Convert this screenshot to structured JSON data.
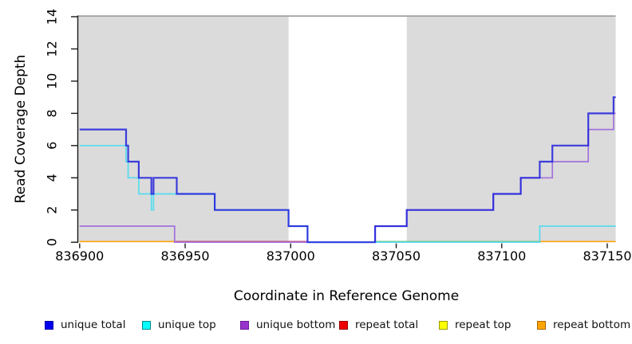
{
  "figure": {
    "background": "#ffffff"
  },
  "chart_data": {
    "type": "line",
    "subtype": "step-coverage-plot",
    "title": "",
    "xlabel": "Coordinate in Reference Genome",
    "ylabel": "Read Coverage Depth",
    "xlim": [
      836899,
      837154
    ],
    "ylim": [
      0,
      14
    ],
    "x_ticks": [
      836900,
      836950,
      837000,
      837050,
      837100,
      837150
    ],
    "y_ticks": [
      0,
      2,
      4,
      6,
      8,
      10,
      12,
      14
    ],
    "grid": false,
    "legend_position": "bottom",
    "shaded_regions": [
      {
        "x1": 836899,
        "x2": 836999,
        "color": "#dbdbdb"
      },
      {
        "x1": 837055,
        "x2": 837154,
        "color": "#dbdbdb"
      }
    ],
    "max_depth_cap_line": {
      "y": 14,
      "color": "#909090"
    },
    "series": [
      {
        "name": "unique total",
        "color": "#2222dd",
        "legend_fill": "#0000ee",
        "legend_border": "#0000aa",
        "steps": [
          [
            836900,
            7
          ],
          [
            836922,
            6
          ],
          [
            836923,
            5
          ],
          [
            836928,
            4
          ],
          [
            836934,
            3
          ],
          [
            836935,
            4
          ],
          [
            836946,
            3
          ],
          [
            836964,
            2
          ],
          [
            836999,
            1
          ],
          [
            837008,
            0
          ],
          [
            837040,
            1
          ],
          [
            837055,
            2
          ],
          [
            837096,
            3
          ],
          [
            837109,
            4
          ],
          [
            837118,
            5
          ],
          [
            837124,
            6
          ],
          [
            837141,
            8
          ],
          [
            837153,
            9
          ],
          [
            837154,
            9
          ]
        ]
      },
      {
        "name": "unique top",
        "color": "#55dcee",
        "legend_fill": "#00ffff",
        "legend_border": "#00898b",
        "steps": [
          [
            836900,
            6
          ],
          [
            836922,
            5
          ],
          [
            836923,
            4
          ],
          [
            836928,
            3
          ],
          [
            836934,
            2
          ],
          [
            836935,
            3
          ],
          [
            836964,
            2
          ],
          [
            836999,
            1
          ],
          [
            837008,
            0
          ],
          [
            837118,
            1
          ],
          [
            837154,
            1
          ]
        ]
      },
      {
        "name": "unique bottom",
        "color": "#a272db",
        "legend_fill": "#9932cc",
        "legend_border": "#6a1b9a",
        "steps": [
          [
            836900,
            1
          ],
          [
            836945,
            0
          ],
          [
            837040,
            1
          ],
          [
            837055,
            2
          ],
          [
            837096,
            3
          ],
          [
            837109,
            4
          ],
          [
            837124,
            5
          ],
          [
            837141,
            7
          ],
          [
            837153,
            8
          ],
          [
            837154,
            8
          ]
        ]
      },
      {
        "name": "repeat total",
        "color": "#cc4d72",
        "legend_fill": "#ee0000",
        "legend_border": "#990000",
        "steps": [
          [
            836900,
            0
          ],
          [
            837154,
            0
          ]
        ]
      },
      {
        "name": "repeat top",
        "color": "#ffff00",
        "legend_fill": "#ffff00",
        "legend_border": "#9a9a00",
        "steps": [
          [
            836900,
            0
          ],
          [
            837154,
            0
          ]
        ]
      },
      {
        "name": "repeat bottom",
        "color": "#ffa510",
        "legend_fill": "#ffa500",
        "legend_border": "#aa6600",
        "steps": [
          [
            836900,
            0
          ],
          [
            837154,
            0
          ]
        ]
      }
    ],
    "baseline_visible_segments": [
      {
        "x1": 836900,
        "x2": 836945,
        "color": "#ffa510",
        "source": "repeat bottom"
      },
      {
        "x1": 836945,
        "x2": 837008,
        "color": "#cc4d72",
        "source": "repeat total"
      },
      {
        "x1": 837040,
        "x2": 837118,
        "color": "#7cc47f",
        "source": "unique top + repeat top overlap"
      },
      {
        "x1": 837118,
        "x2": 837154,
        "color": "#ffa510",
        "source": "repeat bottom"
      }
    ]
  },
  "legend": {
    "items": [
      "unique total",
      "unique top",
      "unique bottom",
      "repeat total",
      "repeat top",
      "repeat bottom"
    ]
  }
}
